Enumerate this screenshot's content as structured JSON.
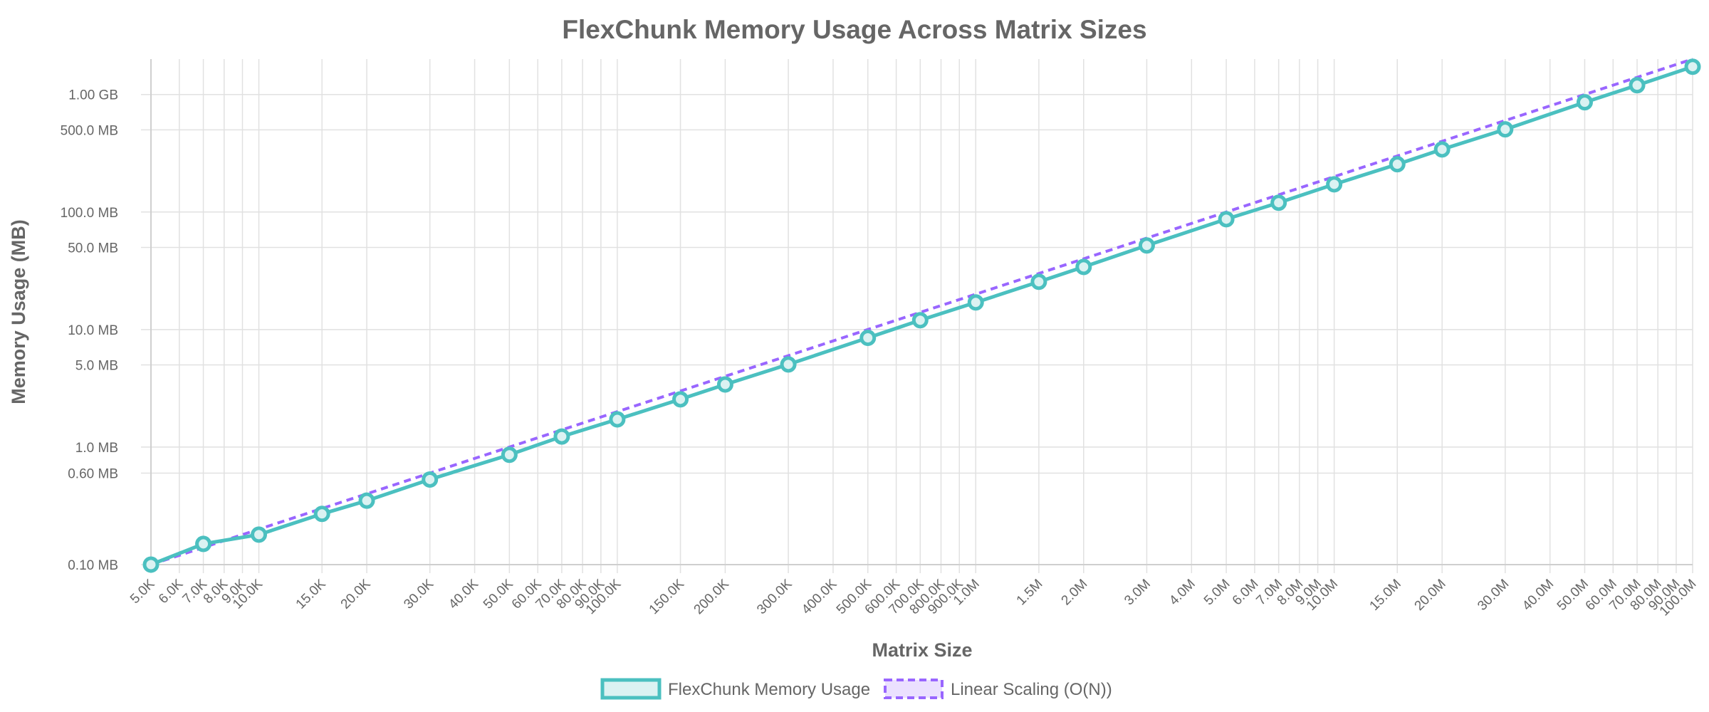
{
  "chart_data": {
    "type": "line",
    "title": "FlexChunk Memory Usage Across Matrix Sizes",
    "xlabel": "Matrix Size",
    "ylabel": "Memory Usage (MB)",
    "x_scale": "log",
    "y_scale": "log",
    "xlim": [
      5000,
      100000000
    ],
    "ylim": [
      0.1,
      2000
    ],
    "grid": true,
    "legend_position": "bottom",
    "x": [
      5000,
      7000,
      10000,
      15000,
      20000,
      30000,
      50000,
      70000,
      100000,
      150000,
      200000,
      300000,
      500000,
      700000,
      1000000,
      1500000,
      2000000,
      3000000,
      5000000,
      7000000,
      10000000,
      15000000,
      20000000,
      30000000,
      50000000,
      70000000,
      100000000
    ],
    "series": [
      {
        "name": "FlexChunk Memory Usage",
        "color": "#4BC0C0",
        "fill": "#DBF2F2",
        "style": "solid",
        "markers": true,
        "values": [
          0.1,
          0.15,
          0.18,
          0.27,
          0.35,
          0.53,
          0.86,
          1.23,
          1.72,
          2.55,
          3.41,
          5.05,
          8.5,
          12.0,
          17.0,
          25.5,
          34.1,
          51.9,
          86.9,
          120,
          172,
          255,
          341,
          505,
          858,
          1199,
          1723
        ]
      },
      {
        "name": "Linear Scaling (O(N))",
        "color": "#9966FF",
        "fill": "#EBE0FF",
        "style": "dashed",
        "markers": false,
        "values": [
          0.1,
          0.14,
          0.2,
          0.3,
          0.4,
          0.6,
          1.0,
          1.4,
          2.0,
          3.0,
          4.0,
          6.0,
          10.0,
          14.0,
          20.0,
          30.0,
          40.0,
          60.0,
          100.0,
          140.0,
          200.0,
          300.0,
          400.0,
          600.0,
          1000.0,
          1400.0,
          2000.0
        ]
      }
    ],
    "x_ticks": [
      {
        "value": 5000,
        "label": "5.0K"
      },
      {
        "value": 6000,
        "label": "6.0K"
      },
      {
        "value": 7000,
        "label": "7.0K"
      },
      {
        "value": 8000,
        "label": "8.0K"
      },
      {
        "value": 9000,
        "label": "9.0K"
      },
      {
        "value": 10000,
        "label": "10.0K"
      },
      {
        "value": 15000,
        "label": "15.0K"
      },
      {
        "value": 20000,
        "label": "20.0K"
      },
      {
        "value": 30000,
        "label": "30.0K"
      },
      {
        "value": 40000,
        "label": "40.0K"
      },
      {
        "value": 50000,
        "label": "50.0K"
      },
      {
        "value": 60000,
        "label": "60.0K"
      },
      {
        "value": 70000,
        "label": "70.0K"
      },
      {
        "value": 80000,
        "label": "80.0K"
      },
      {
        "value": 90000,
        "label": "90.0K"
      },
      {
        "value": 100000,
        "label": "100.0K"
      },
      {
        "value": 150000,
        "label": "150.0K"
      },
      {
        "value": 200000,
        "label": "200.0K"
      },
      {
        "value": 300000,
        "label": "300.0K"
      },
      {
        "value": 400000,
        "label": "400.0K"
      },
      {
        "value": 500000,
        "label": "500.0K"
      },
      {
        "value": 600000,
        "label": "600.0K"
      },
      {
        "value": 700000,
        "label": "700.0K"
      },
      {
        "value": 800000,
        "label": "800.0K"
      },
      {
        "value": 900000,
        "label": "900.0K"
      },
      {
        "value": 1000000,
        "label": "1.0M"
      },
      {
        "value": 1500000,
        "label": "1.5M"
      },
      {
        "value": 2000000,
        "label": "2.0M"
      },
      {
        "value": 3000000,
        "label": "3.0M"
      },
      {
        "value": 4000000,
        "label": "4.0M"
      },
      {
        "value": 5000000,
        "label": "5.0M"
      },
      {
        "value": 6000000,
        "label": "6.0M"
      },
      {
        "value": 7000000,
        "label": "7.0M"
      },
      {
        "value": 8000000,
        "label": "8.0M"
      },
      {
        "value": 9000000,
        "label": "9.0M"
      },
      {
        "value": 10000000,
        "label": "10.0M"
      },
      {
        "value": 15000000,
        "label": "15.0M"
      },
      {
        "value": 20000000,
        "label": "20.0M"
      },
      {
        "value": 30000000,
        "label": "30.0M"
      },
      {
        "value": 40000000,
        "label": "40.0M"
      },
      {
        "value": 50000000,
        "label": "50.0M"
      },
      {
        "value": 60000000,
        "label": "60.0M"
      },
      {
        "value": 70000000,
        "label": "70.0M"
      },
      {
        "value": 80000000,
        "label": "80.0M"
      },
      {
        "value": 90000000,
        "label": "90.0M"
      },
      {
        "value": 100000000,
        "label": "100.0M"
      }
    ],
    "y_ticks": [
      {
        "value": 0.1,
        "label": "0.10 MB"
      },
      {
        "value": 0.6,
        "label": "0.60 MB"
      },
      {
        "value": 1,
        "label": "1.0 MB"
      },
      {
        "value": 5,
        "label": "5.0 MB"
      },
      {
        "value": 10,
        "label": "10.0 MB"
      },
      {
        "value": 50,
        "label": "50.0 MB"
      },
      {
        "value": 100,
        "label": "100.0 MB"
      },
      {
        "value": 500,
        "label": "500.0 MB"
      },
      {
        "value": 1000,
        "label": "1.00 GB"
      }
    ]
  }
}
